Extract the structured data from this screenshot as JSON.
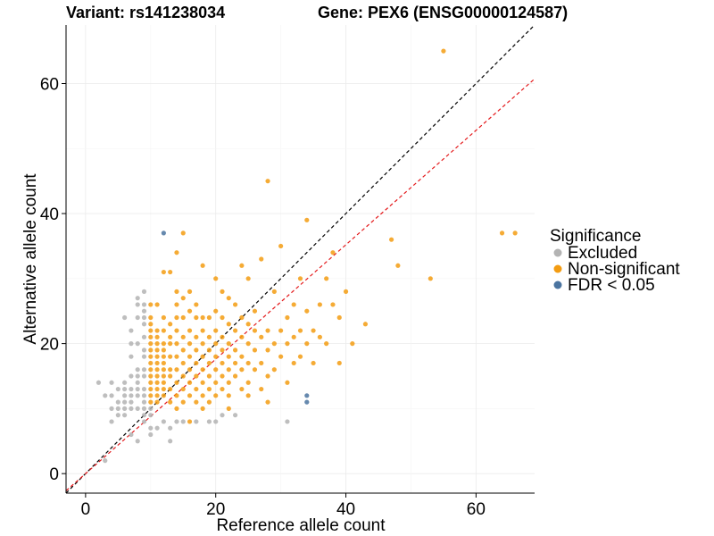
{
  "chart_data": {
    "type": "scatter",
    "title_left": "Variant: rs141238034",
    "title_right": "Gene: PEX6 (ENSG00000124587)",
    "xlabel": "Reference allele count",
    "ylabel": "Alternative allele count",
    "xlim": [
      -3,
      69
    ],
    "ylim": [
      -3,
      69
    ],
    "xticks": [
      0,
      20,
      40,
      60
    ],
    "yticks": [
      0,
      20,
      40,
      60
    ],
    "legend": {
      "title": "Significance",
      "entries": [
        {
          "key": "excluded",
          "label": "Excluded",
          "color": "#b3b3b3"
        },
        {
          "key": "nonsig",
          "label": "Non-significant",
          "color": "#f39c12"
        },
        {
          "key": "fdr",
          "label": "FDR < 0.05",
          "color": "#4b74a0"
        }
      ]
    },
    "reference_lines": [
      {
        "name": "identity",
        "slope": 1,
        "intercept": 0,
        "color": "#000000"
      },
      {
        "name": "fit",
        "slope": 0.88,
        "intercept": 0,
        "color": "#e41a1c"
      }
    ],
    "series": [
      {
        "name": "Excluded",
        "color": "#b3b3b3",
        "points": [
          [
            2,
            14
          ],
          [
            3,
            2
          ],
          [
            3,
            12
          ],
          [
            4,
            8
          ],
          [
            4,
            10
          ],
          [
            4,
            12
          ],
          [
            4,
            14
          ],
          [
            5,
            9
          ],
          [
            5,
            10
          ],
          [
            5,
            11
          ],
          [
            5,
            13
          ],
          [
            6,
            9
          ],
          [
            6,
            10
          ],
          [
            6,
            11
          ],
          [
            6,
            12
          ],
          [
            6,
            13
          ],
          [
            6,
            14
          ],
          [
            6,
            24
          ],
          [
            7,
            6
          ],
          [
            7,
            10
          ],
          [
            7,
            11
          ],
          [
            7,
            12
          ],
          [
            7,
            13
          ],
          [
            7,
            15
          ],
          [
            7,
            18
          ],
          [
            7,
            20
          ],
          [
            7,
            22
          ],
          [
            8,
            5
          ],
          [
            8,
            10
          ],
          [
            8,
            12
          ],
          [
            8,
            13
          ],
          [
            8,
            14
          ],
          [
            8,
            15
          ],
          [
            8,
            16
          ],
          [
            8,
            20
          ],
          [
            8,
            24
          ],
          [
            8,
            26
          ],
          [
            8,
            27
          ],
          [
            9,
            8
          ],
          [
            9,
            9
          ],
          [
            9,
            10
          ],
          [
            9,
            11
          ],
          [
            9,
            12
          ],
          [
            9,
            13
          ],
          [
            9,
            15
          ],
          [
            9,
            16
          ],
          [
            9,
            18
          ],
          [
            9,
            19
          ],
          [
            9,
            21
          ],
          [
            9,
            23
          ],
          [
            9,
            24
          ],
          [
            9,
            25
          ],
          [
            9,
            26
          ],
          [
            9,
            28
          ],
          [
            10,
            6
          ],
          [
            10,
            7
          ],
          [
            10,
            9
          ],
          [
            10,
            10
          ],
          [
            11,
            7
          ],
          [
            12,
            8
          ],
          [
            13,
            5
          ],
          [
            13,
            7
          ],
          [
            14,
            8
          ],
          [
            15,
            8
          ],
          [
            17,
            8
          ],
          [
            19,
            8
          ],
          [
            20,
            8
          ],
          [
            21,
            9
          ],
          [
            23,
            9
          ],
          [
            31,
            8
          ]
        ]
      },
      {
        "name": "Non-significant",
        "color": "#f39c12",
        "points": [
          [
            10,
            11
          ],
          [
            10,
            12
          ],
          [
            10,
            13
          ],
          [
            10,
            14
          ],
          [
            10,
            15
          ],
          [
            10,
            16
          ],
          [
            10,
            17
          ],
          [
            10,
            18
          ],
          [
            10,
            19
          ],
          [
            10,
            20
          ],
          [
            10,
            21
          ],
          [
            10,
            22
          ],
          [
            10,
            23
          ],
          [
            10,
            24
          ],
          [
            10,
            26
          ],
          [
            11,
            11
          ],
          [
            11,
            12
          ],
          [
            11,
            13
          ],
          [
            11,
            14
          ],
          [
            11,
            15
          ],
          [
            11,
            16
          ],
          [
            11,
            17
          ],
          [
            11,
            18
          ],
          [
            11,
            19
          ],
          [
            11,
            20
          ],
          [
            11,
            21
          ],
          [
            11,
            22
          ],
          [
            11,
            26
          ],
          [
            12,
            12
          ],
          [
            12,
            13
          ],
          [
            12,
            14
          ],
          [
            12,
            15
          ],
          [
            12,
            16
          ],
          [
            12,
            17
          ],
          [
            12,
            18
          ],
          [
            12,
            19
          ],
          [
            12,
            20
          ],
          [
            12,
            22
          ],
          [
            12,
            24
          ],
          [
            12,
            31
          ],
          [
            13,
            11
          ],
          [
            13,
            13
          ],
          [
            13,
            15
          ],
          [
            13,
            16
          ],
          [
            13,
            18
          ],
          [
            13,
            20
          ],
          [
            13,
            21
          ],
          [
            13,
            23
          ],
          [
            13,
            31
          ],
          [
            14,
            10
          ],
          [
            14,
            12
          ],
          [
            14,
            14
          ],
          [
            14,
            16
          ],
          [
            14,
            18
          ],
          [
            14,
            20
          ],
          [
            14,
            22
          ],
          [
            14,
            24
          ],
          [
            14,
            26
          ],
          [
            14,
            28
          ],
          [
            14,
            34
          ],
          [
            15,
            11
          ],
          [
            15,
            13
          ],
          [
            15,
            15
          ],
          [
            15,
            17
          ],
          [
            15,
            19
          ],
          [
            15,
            21
          ],
          [
            15,
            24
          ],
          [
            15,
            27
          ],
          [
            15,
            37
          ],
          [
            16,
            8
          ],
          [
            16,
            12
          ],
          [
            16,
            14
          ],
          [
            16,
            16
          ],
          [
            16,
            18
          ],
          [
            16,
            20
          ],
          [
            16,
            22
          ],
          [
            16,
            25
          ],
          [
            16,
            28
          ],
          [
            17,
            11
          ],
          [
            17,
            13
          ],
          [
            17,
            15
          ],
          [
            17,
            17
          ],
          [
            17,
            19
          ],
          [
            17,
            21
          ],
          [
            17,
            24
          ],
          [
            17,
            26
          ],
          [
            18,
            10
          ],
          [
            18,
            12
          ],
          [
            18,
            14
          ],
          [
            18,
            16
          ],
          [
            18,
            18
          ],
          [
            18,
            20
          ],
          [
            18,
            22
          ],
          [
            18,
            24
          ],
          [
            18,
            32
          ],
          [
            19,
            11
          ],
          [
            19,
            13
          ],
          [
            19,
            15
          ],
          [
            19,
            17
          ],
          [
            19,
            19
          ],
          [
            19,
            21
          ],
          [
            19,
            24
          ],
          [
            20,
            12
          ],
          [
            20,
            14
          ],
          [
            20,
            16
          ],
          [
            20,
            18
          ],
          [
            20,
            20
          ],
          [
            20,
            22
          ],
          [
            20,
            25
          ],
          [
            20,
            30
          ],
          [
            21,
            13
          ],
          [
            21,
            15
          ],
          [
            21,
            17
          ],
          [
            21,
            19
          ],
          [
            21,
            21
          ],
          [
            21,
            24
          ],
          [
            21,
            28
          ],
          [
            22,
            10
          ],
          [
            22,
            12
          ],
          [
            22,
            14
          ],
          [
            22,
            16
          ],
          [
            22,
            18
          ],
          [
            22,
            20
          ],
          [
            22,
            23
          ],
          [
            22,
            27
          ],
          [
            23,
            15
          ],
          [
            23,
            17
          ],
          [
            23,
            19
          ],
          [
            23,
            22
          ],
          [
            23,
            26
          ],
          [
            24,
            13
          ],
          [
            24,
            16
          ],
          [
            24,
            18
          ],
          [
            24,
            21
          ],
          [
            24,
            24
          ],
          [
            24,
            32
          ],
          [
            25,
            12
          ],
          [
            25,
            14
          ],
          [
            25,
            17
          ],
          [
            25,
            20
          ],
          [
            25,
            23
          ],
          [
            25,
            30
          ],
          [
            26,
            16
          ],
          [
            26,
            19
          ],
          [
            26,
            22
          ],
          [
            26,
            25
          ],
          [
            27,
            13
          ],
          [
            27,
            17
          ],
          [
            27,
            21
          ],
          [
            27,
            33
          ],
          [
            28,
            11
          ],
          [
            28,
            15
          ],
          [
            28,
            19
          ],
          [
            28,
            22
          ],
          [
            28,
            45
          ],
          [
            29,
            16
          ],
          [
            29,
            20
          ],
          [
            29,
            28
          ],
          [
            30,
            18
          ],
          [
            30,
            22
          ],
          [
            30,
            35
          ],
          [
            31,
            14
          ],
          [
            31,
            20
          ],
          [
            31,
            24
          ],
          [
            32,
            17
          ],
          [
            32,
            21
          ],
          [
            32,
            26
          ],
          [
            33,
            18
          ],
          [
            33,
            22
          ],
          [
            33,
            30
          ],
          [
            34,
            20
          ],
          [
            34,
            25
          ],
          [
            34,
            39
          ],
          [
            35,
            17
          ],
          [
            35,
            22
          ],
          [
            36,
            21
          ],
          [
            36,
            26
          ],
          [
            37,
            20
          ],
          [
            37,
            30
          ],
          [
            38,
            34
          ],
          [
            38,
            26
          ],
          [
            39,
            17
          ],
          [
            39,
            24
          ],
          [
            40,
            28
          ],
          [
            41,
            20
          ],
          [
            43,
            23
          ],
          [
            47,
            36
          ],
          [
            48,
            32
          ],
          [
            53,
            30
          ],
          [
            55,
            65
          ],
          [
            64,
            37
          ],
          [
            66,
            37
          ]
        ]
      },
      {
        "name": "FDR < 0.05",
        "color": "#4b74a0",
        "points": [
          [
            12,
            37
          ],
          [
            34,
            11
          ],
          [
            34,
            12
          ]
        ]
      }
    ]
  }
}
